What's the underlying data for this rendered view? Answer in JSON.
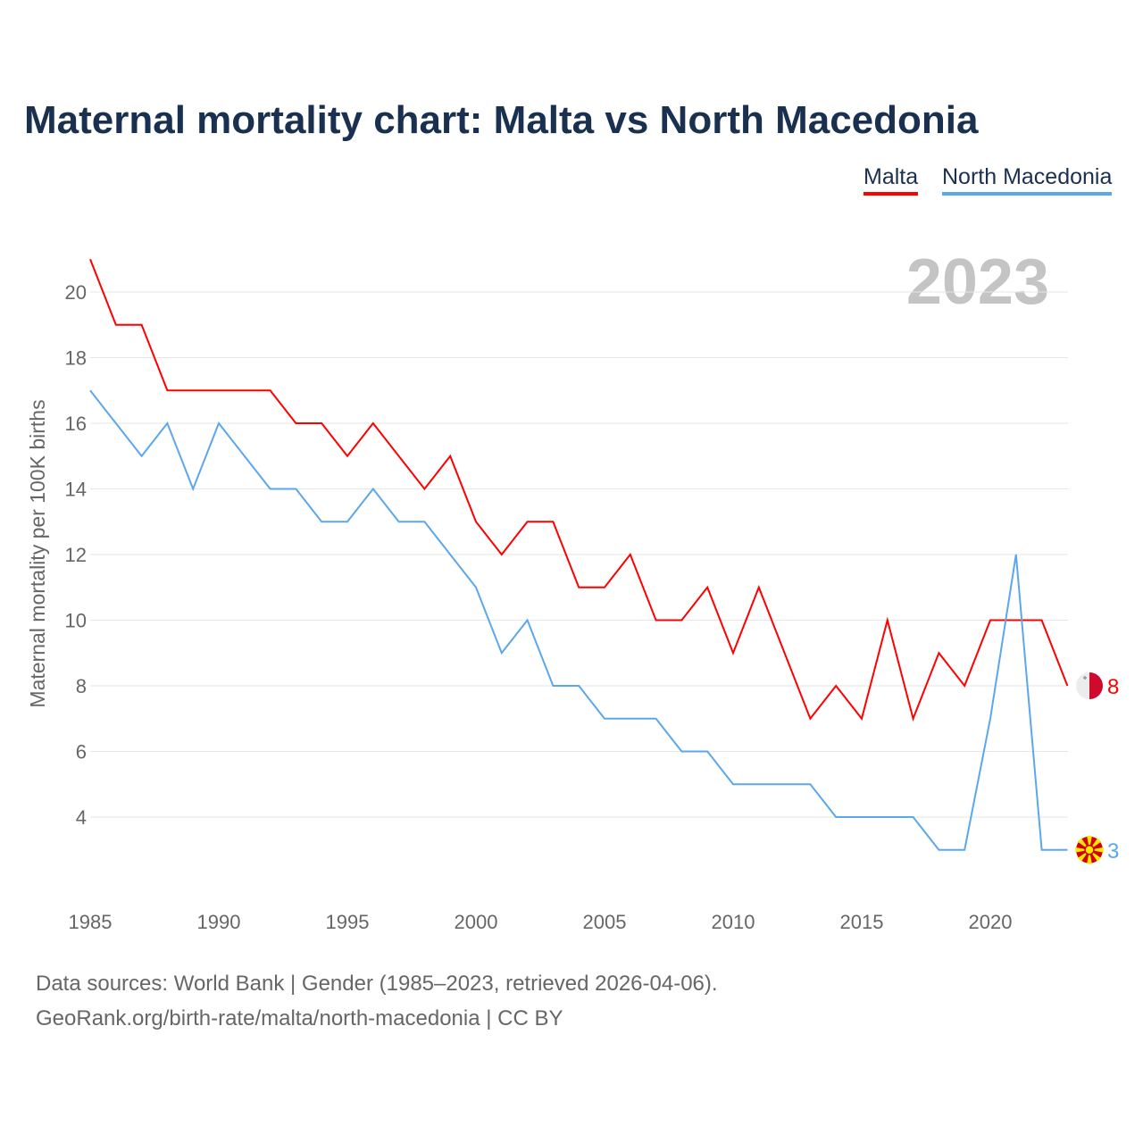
{
  "chart_data": {
    "type": "line",
    "title": "Maternal mortality chart: Malta vs North Macedonia",
    "ylabel": "Maternal mortality per 100K births",
    "xlabel": "",
    "year_label": "2023",
    "xlim": [
      1985,
      2023
    ],
    "ylim": [
      2,
      21.5
    ],
    "xticks": [
      1985,
      1990,
      1995,
      2000,
      2005,
      2010,
      2015,
      2020
    ],
    "yticks": [
      4,
      6,
      8,
      10,
      12,
      14,
      16,
      18,
      20
    ],
    "grid": true,
    "legend_position": "top-right",
    "x": [
      1985,
      1986,
      1987,
      1988,
      1989,
      1990,
      1991,
      1992,
      1993,
      1994,
      1995,
      1996,
      1997,
      1998,
      1999,
      2000,
      2001,
      2002,
      2003,
      2004,
      2005,
      2006,
      2007,
      2008,
      2009,
      2010,
      2011,
      2012,
      2013,
      2014,
      2015,
      2016,
      2017,
      2018,
      2019,
      2020,
      2021,
      2022,
      2023
    ],
    "series": [
      {
        "name": "Malta",
        "color": "#ff0000",
        "end_label": "8",
        "values": [
          21,
          19,
          19,
          17,
          17,
          17,
          17,
          17,
          16,
          16,
          15,
          16,
          15,
          14,
          15,
          13,
          12,
          13,
          13,
          11,
          11,
          12,
          10,
          10,
          11,
          9,
          11,
          9,
          7,
          8,
          7,
          10,
          7,
          9,
          8,
          10,
          10,
          10,
          8
        ]
      },
      {
        "name": "North Macedonia",
        "color": "#5ba7ee",
        "end_label": "3",
        "values": [
          17,
          16,
          15,
          16,
          14,
          16,
          15,
          14,
          14,
          13,
          13,
          14,
          13,
          13,
          12,
          11,
          9,
          10,
          8,
          8,
          7,
          7,
          7,
          6,
          6,
          5,
          5,
          5,
          5,
          4,
          4,
          4,
          4,
          3,
          3,
          7,
          12,
          3,
          3
        ]
      }
    ]
  },
  "footer": {
    "line1": "Data sources: World Bank | Gender (1985–2023, retrieved 2026-04-06).",
    "line2": "GeoRank.org/birth-rate/malta/north-macedonia | CC BY"
  }
}
